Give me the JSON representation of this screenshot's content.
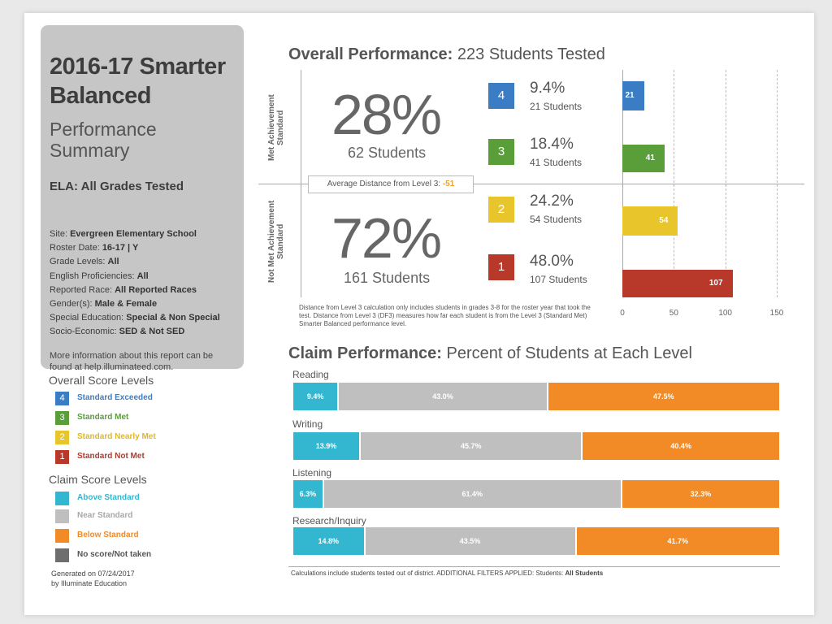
{
  "colors": {
    "level4": "#3b7dc4",
    "level3": "#5a9e3a",
    "level2": "#e8c52b",
    "level1": "#b8392a",
    "above": "#33b7d0",
    "near": "#bfbfbf",
    "below": "#f28a25",
    "noscore": "#6e6e6e"
  },
  "summary": {
    "title_line1": "2016-17 Smarter",
    "title_line2": "Balanced",
    "subtitle_line1": "Performance",
    "subtitle_line2": "Summary",
    "subject": "ELA: All Grades Tested",
    "filters": [
      {
        "label": "Site:",
        "value": "Evergreen Elementary School"
      },
      {
        "label": "Roster Date:",
        "value": "16-17 | Y"
      },
      {
        "label": "Grade Levels:",
        "value": "All"
      },
      {
        "label": "English Proficiencies:",
        "value": "All"
      },
      {
        "label": "Reported Race:",
        "value": "All Reported Races"
      },
      {
        "label": "Gender(s):",
        "value": "Male & Female"
      },
      {
        "label": "Special Education:",
        "value": "Special & Non Special"
      },
      {
        "label": "Socio-Economic:",
        "value": "SED & Not SED"
      }
    ],
    "info_line1": "More information about this report can be",
    "info_line2": "found at help.illuminateed.com."
  },
  "legend": {
    "overall_heading": "Overall Score Levels",
    "overall": [
      {
        "badge": "4",
        "label": "Standard Exceeded",
        "color": "#3b7dc4"
      },
      {
        "badge": "3",
        "label": "Standard Met",
        "color": "#5a9e3a"
      },
      {
        "badge": "2",
        "label": "Standard Nearly Met",
        "color": "#e8c52b"
      },
      {
        "badge": "1",
        "label": "Standard Not Met",
        "color": "#b8392a"
      }
    ],
    "claim_heading": "Claim Score Levels",
    "claim": [
      {
        "label": "Above Standard",
        "color": "#33b7d0",
        "text_color": "#33b7d0"
      },
      {
        "label": "Near Standard",
        "color": "#bfbfbf",
        "text_color": "#a8a8a8"
      },
      {
        "label": "Below Standard",
        "color": "#f28a25",
        "text_color": "#f28a25"
      },
      {
        "label": "No score/Not taken",
        "color": "#6e6e6e",
        "text_color": "#555555"
      }
    ]
  },
  "generated": {
    "line1": "Generated on 07/24/2017",
    "line2": "by Illuminate Education"
  },
  "overall": {
    "title_bold": "Overall Performance:",
    "title_rest": "223 Students Tested",
    "met_label": "Met Achievement Standard",
    "not_met_label": "Not Met Achievement Standard",
    "met_pct": "28%",
    "met_students": "62 Students",
    "not_met_pct": "72%",
    "not_met_students": "161 Students",
    "avg_distance_label": "Average Distance from Level 3:",
    "avg_distance_value": "-51",
    "note": "Distance from Level 3 calculation only includes students in grades 3-8 for the roster year that took the test. Distance from Level 3 (DF3) measures how far each student is from the Level 3 (Standard Met) Smarter Balanced performance level."
  },
  "chart_data": [
    {
      "type": "bar",
      "orientation": "horizontal",
      "categories": [
        "4",
        "3",
        "2",
        "1"
      ],
      "values": [
        21,
        41,
        54,
        107
      ],
      "percents": [
        "9.4%",
        "18.4%",
        "24.2%",
        "48.0%"
      ],
      "students": [
        "21 Students",
        "41 Students",
        "54 Students",
        "107 Students"
      ],
      "colors": [
        "#3b7dc4",
        "#5a9e3a",
        "#e8c52b",
        "#b8392a"
      ],
      "xlim": [
        0,
        150
      ],
      "xticks": [
        "0",
        "50",
        "100",
        "150"
      ],
      "grid": true
    },
    {
      "type": "bar",
      "orientation": "horizontal",
      "stacked": true,
      "title_bold": "Claim Performance:",
      "title_rest": "Percent of Students at Each Level",
      "categories": [
        "Reading",
        "Writing",
        "Listening",
        "Research/Inquiry"
      ],
      "series": [
        {
          "values": [
            9.4,
            13.9,
            6.3,
            14.8
          ],
          "labels": [
            "9.4%",
            "13.9%",
            "6.3%",
            "14.8%"
          ],
          "color": "#33b7d0"
        },
        {
          "values": [
            43.0,
            45.7,
            61.4,
            43.5
          ],
          "labels": [
            "43.0%",
            "45.7%",
            "61.4%",
            "43.5%"
          ],
          "color": "#bfbfbf"
        },
        {
          "values": [
            47.5,
            40.4,
            32.3,
            41.7
          ],
          "labels": [
            "47.5%",
            "40.4%",
            "32.3%",
            "41.7%"
          ],
          "color": "#f28a25"
        }
      ],
      "note_prefix": "Calculations include students tested out of district. ADDITIONAL FILTERS APPLIED:",
      "note_filter_label": "Students:",
      "note_filter_value": "All Students"
    }
  ]
}
